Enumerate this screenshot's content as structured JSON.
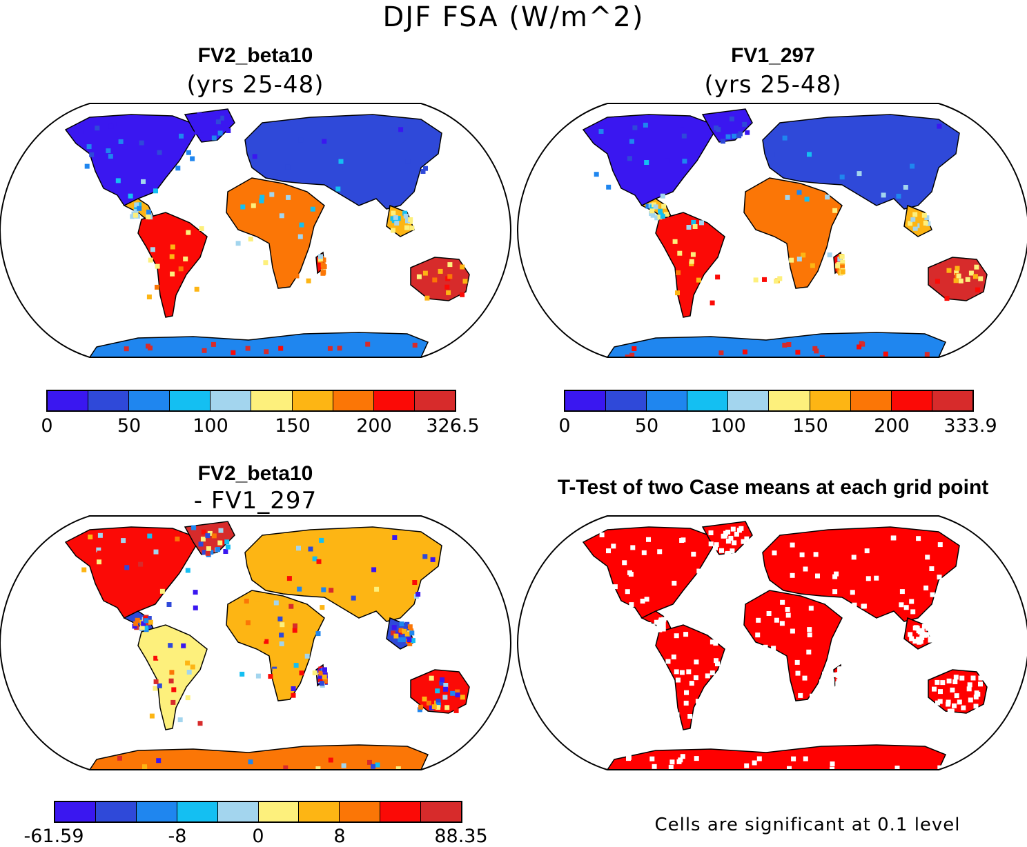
{
  "figure": {
    "title": "DJF FSA (W/m^2)"
  },
  "panels": [
    {
      "id": "top-left",
      "title": "FV2_beta10",
      "subtitle": "(yrs 25-48)",
      "colorbar": {
        "colors": [
          "#3a17f0",
          "#2f49d9",
          "#1f86ef",
          "#14bff2",
          "#a3d5ee",
          "#fdf07c",
          "#fdb514",
          "#fb7606",
          "#fb0a06",
          "#d72b2b"
        ],
        "ticks": [
          "0",
          "50",
          "100",
          "150",
          "200",
          "326.5"
        ]
      }
    },
    {
      "id": "top-right",
      "title": "FV1_297",
      "subtitle": "(yrs 25-48)",
      "colorbar": {
        "colors": [
          "#3a17f0",
          "#2f49d9",
          "#1f86ef",
          "#14bff2",
          "#a3d5ee",
          "#fdf07c",
          "#fdb514",
          "#fb7606",
          "#fb0a06",
          "#d72b2b"
        ],
        "ticks": [
          "0",
          "50",
          "100",
          "150",
          "200",
          "333.9"
        ]
      }
    },
    {
      "id": "bottom-left",
      "title": "FV2_beta10",
      "subtitle": "- FV1_297",
      "colorbar": {
        "colors": [
          "#3a17f0",
          "#2f49d9",
          "#1f86ef",
          "#14bff2",
          "#a3d5ee",
          "#fdf07c",
          "#fdb514",
          "#fb7606",
          "#fb0a06",
          "#d72b2b"
        ],
        "ticks": [
          "-61.59",
          "-8",
          "0",
          "8",
          "88.35"
        ]
      }
    },
    {
      "id": "bottom-right",
      "title": "T-Test of two Case means at each grid point",
      "footnote": "Cells are significant at 0.1 level",
      "significant_color": "#ff0000"
    }
  ]
}
